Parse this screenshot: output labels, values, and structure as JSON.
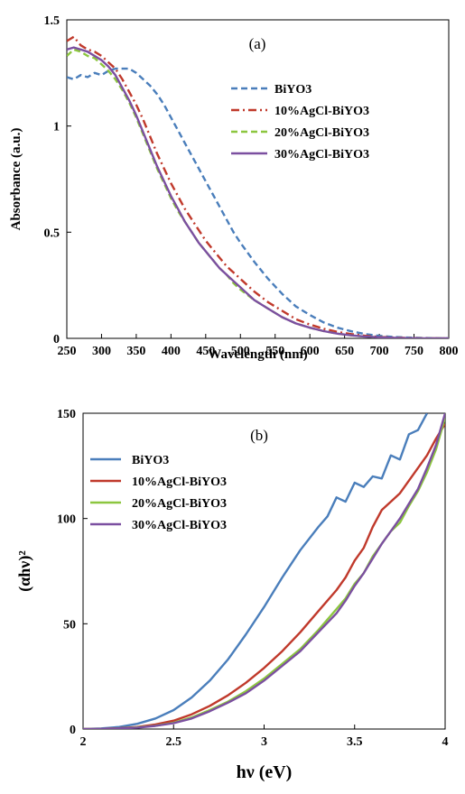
{
  "chart_data": [
    {
      "type": "line",
      "panel_label": "(a)",
      "xlabel": "Wavelength (nm)",
      "ylabel": "Absorbance (a.u.)",
      "xlim": [
        250,
        800
      ],
      "ylim": [
        0,
        1.5
      ],
      "x_ticks": [
        "250",
        "300",
        "350",
        "400",
        "450",
        "500",
        "550",
        "600",
        "650",
        "700",
        "750",
        "800"
      ],
      "y_ticks": [
        "0",
        "0.5",
        "1",
        "1.5"
      ],
      "grid": false,
      "legend_position": "top-right",
      "series": [
        {
          "name": "BiYO3",
          "color": "#4a7ebb",
          "dash": "dashed",
          "x": [
            250,
            260,
            270,
            280,
            290,
            300,
            310,
            320,
            330,
            340,
            350,
            360,
            370,
            380,
            390,
            400,
            410,
            420,
            430,
            440,
            450,
            460,
            470,
            480,
            490,
            500,
            520,
            540,
            560,
            580,
            600,
            620,
            640,
            660,
            680,
            700,
            720,
            740,
            760,
            780,
            800
          ],
          "y": [
            1.23,
            1.22,
            1.24,
            1.23,
            1.25,
            1.24,
            1.26,
            1.27,
            1.27,
            1.27,
            1.25,
            1.22,
            1.19,
            1.15,
            1.1,
            1.04,
            0.98,
            0.92,
            0.86,
            0.8,
            0.74,
            0.68,
            0.62,
            0.56,
            0.5,
            0.45,
            0.36,
            0.28,
            0.21,
            0.15,
            0.11,
            0.075,
            0.05,
            0.033,
            0.02,
            0.012,
            0.007,
            0.004,
            0.002,
            0.001,
            0.0
          ]
        },
        {
          "name": "10%AgCl-BiYO3",
          "color": "#c0392b",
          "dash": "dashdot",
          "x": [
            250,
            260,
            270,
            280,
            290,
            300,
            310,
            320,
            330,
            340,
            350,
            360,
            370,
            380,
            390,
            400,
            410,
            420,
            430,
            440,
            450,
            460,
            470,
            480,
            490,
            500,
            520,
            540,
            560,
            580,
            600,
            620,
            640,
            660,
            680,
            700,
            720,
            740,
            760,
            780,
            800
          ],
          "y": [
            1.4,
            1.42,
            1.38,
            1.36,
            1.35,
            1.33,
            1.3,
            1.27,
            1.22,
            1.16,
            1.1,
            1.03,
            0.95,
            0.87,
            0.8,
            0.73,
            0.67,
            0.61,
            0.56,
            0.51,
            0.46,
            0.42,
            0.38,
            0.34,
            0.31,
            0.28,
            0.22,
            0.17,
            0.13,
            0.09,
            0.065,
            0.045,
            0.03,
            0.02,
            0.012,
            0.007,
            0.004,
            0.002,
            0.001,
            0.0,
            0.0
          ]
        },
        {
          "name": "20%AgCl-BiYO3",
          "color": "#8cc63f",
          "dash": "dashed",
          "x": [
            250,
            260,
            270,
            280,
            290,
            300,
            310,
            320,
            330,
            340,
            350,
            360,
            370,
            380,
            390,
            400,
            410,
            420,
            430,
            440,
            450,
            460,
            470,
            480,
            490,
            500,
            520,
            540,
            560,
            580,
            600,
            620,
            640,
            660,
            680,
            700,
            720,
            740,
            760,
            780,
            800
          ],
          "y": [
            1.33,
            1.36,
            1.35,
            1.33,
            1.32,
            1.29,
            1.26,
            1.22,
            1.17,
            1.11,
            1.04,
            0.96,
            0.88,
            0.8,
            0.73,
            0.66,
            0.6,
            0.55,
            0.5,
            0.45,
            0.41,
            0.37,
            0.33,
            0.3,
            0.26,
            0.23,
            0.18,
            0.14,
            0.1,
            0.07,
            0.05,
            0.034,
            0.022,
            0.014,
            0.008,
            0.005,
            0.003,
            0.001,
            0.0,
            0.0,
            0.0
          ]
        },
        {
          "name": "30%AgCl-BiYO3",
          "color": "#7b4fa0",
          "dash": "solid",
          "x": [
            250,
            260,
            270,
            280,
            290,
            300,
            310,
            320,
            330,
            340,
            350,
            360,
            370,
            380,
            390,
            400,
            410,
            420,
            430,
            440,
            450,
            460,
            470,
            480,
            490,
            500,
            520,
            540,
            560,
            580,
            600,
            620,
            640,
            660,
            680,
            700,
            720,
            740,
            760,
            780,
            800
          ],
          "y": [
            1.36,
            1.37,
            1.36,
            1.35,
            1.33,
            1.31,
            1.28,
            1.24,
            1.18,
            1.12,
            1.05,
            0.97,
            0.89,
            0.81,
            0.74,
            0.67,
            0.61,
            0.55,
            0.5,
            0.45,
            0.41,
            0.37,
            0.33,
            0.3,
            0.27,
            0.24,
            0.18,
            0.14,
            0.1,
            0.07,
            0.05,
            0.034,
            0.022,
            0.014,
            0.008,
            0.005,
            0.003,
            0.001,
            0.0,
            0.0,
            0.0
          ]
        }
      ]
    },
    {
      "type": "line",
      "panel_label": "(b)",
      "xlabel": "hν (eV)",
      "ylabel": "(αhν)²",
      "xlim": [
        2,
        4
      ],
      "ylim": [
        0,
        150
      ],
      "x_ticks": [
        "2",
        "2.5",
        "3",
        "3.5",
        "4"
      ],
      "y_ticks": [
        "0",
        "50",
        "100",
        "150"
      ],
      "grid": false,
      "legend_position": "top-left",
      "series": [
        {
          "name": "BiYO3",
          "color": "#4a7ebb",
          "dash": "solid",
          "x": [
            2.0,
            2.1,
            2.2,
            2.3,
            2.4,
            2.5,
            2.6,
            2.7,
            2.8,
            2.9,
            3.0,
            3.1,
            3.2,
            3.3,
            3.35,
            3.4,
            3.45,
            3.5,
            3.55,
            3.6,
            3.65,
            3.7,
            3.75,
            3.8,
            3.85,
            3.9
          ],
          "y": [
            0,
            0.3,
            1.0,
            2.5,
            5,
            9,
            15,
            23,
            33,
            45,
            58,
            72,
            85,
            96,
            101,
            110,
            108,
            117,
            115,
            120,
            119,
            130,
            128,
            140,
            142,
            150
          ]
        },
        {
          "name": "10%AgCl-BiYO3",
          "color": "#c0392b",
          "dash": "solid",
          "x": [
            2.0,
            2.1,
            2.2,
            2.3,
            2.4,
            2.5,
            2.6,
            2.7,
            2.8,
            2.9,
            3.0,
            3.1,
            3.2,
            3.3,
            3.4,
            3.45,
            3.5,
            3.55,
            3.6,
            3.65,
            3.7,
            3.75,
            3.8,
            3.85,
            3.9,
            3.95,
            4.0
          ],
          "y": [
            0,
            0.1,
            0.4,
            1.0,
            2.2,
            4,
            7,
            11,
            16,
            22,
            29,
            37,
            46,
            56,
            66,
            72,
            80,
            86,
            96,
            104,
            108,
            112,
            118,
            124,
            130,
            138,
            145
          ]
        },
        {
          "name": "20%AgCl-BiYO3",
          "color": "#8cc63f",
          "dash": "solid",
          "x": [
            2.0,
            2.1,
            2.2,
            2.3,
            2.4,
            2.5,
            2.6,
            2.7,
            2.8,
            2.9,
            3.0,
            3.1,
            3.2,
            3.3,
            3.4,
            3.45,
            3.5,
            3.55,
            3.6,
            3.65,
            3.7,
            3.75,
            3.8,
            3.85,
            3.9,
            3.95,
            4.0
          ],
          "y": [
            0,
            0.1,
            0.3,
            0.8,
            1.6,
            3,
            5.5,
            9,
            13,
            18,
            24,
            31,
            38,
            47,
            57,
            62,
            69,
            74,
            82,
            88,
            94,
            98,
            106,
            113,
            122,
            133,
            148
          ]
        },
        {
          "name": "30%AgCl-BiYO3",
          "color": "#7b4fa0",
          "dash": "solid",
          "x": [
            2.0,
            2.1,
            2.2,
            2.3,
            2.4,
            2.5,
            2.6,
            2.7,
            2.8,
            2.9,
            3.0,
            3.1,
            3.2,
            3.3,
            3.4,
            3.45,
            3.5,
            3.55,
            3.6,
            3.65,
            3.7,
            3.75,
            3.8,
            3.85,
            3.9,
            3.95,
            4.0
          ],
          "y": [
            0,
            0.1,
            0.3,
            0.7,
            1.5,
            2.8,
            5,
            8.5,
            12.5,
            17,
            23,
            30,
            37,
            46,
            55,
            61,
            68,
            74,
            81,
            88,
            94,
            100,
            107,
            114,
            124,
            135,
            150
          ]
        }
      ]
    }
  ]
}
